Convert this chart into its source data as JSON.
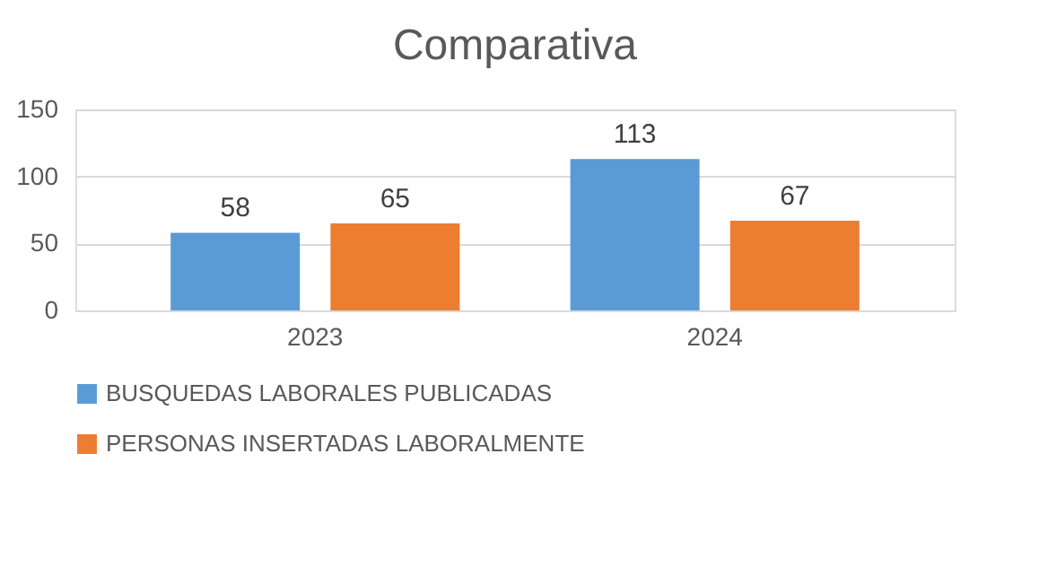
{
  "chart_data": {
    "type": "bar",
    "title": "Comparativa",
    "categories": [
      "2023",
      "2024"
    ],
    "series": [
      {
        "name": "BUSQUEDAS LABORALES PUBLICADAS",
        "color": "#5b9bd5",
        "values": [
          58,
          113
        ]
      },
      {
        "name": "PERSONAS INSERTADAS LABORALMENTE",
        "color": "#ed7d31",
        "values": [
          65,
          67
        ]
      }
    ],
    "ylim": [
      0,
      150
    ],
    "yticks": [
      0,
      50,
      100,
      150
    ],
    "grid": "y",
    "legend": "bottom",
    "data_labels": true
  }
}
